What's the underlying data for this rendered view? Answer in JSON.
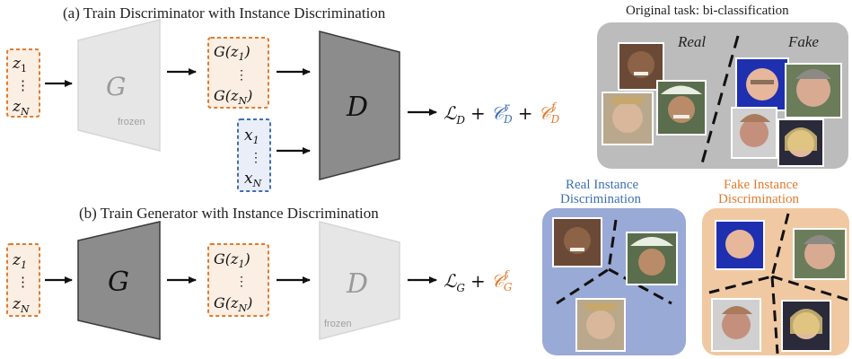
{
  "section_a": {
    "title": "(a) Train Discriminator with Instance Discrimination",
    "inputs": [
      "z",
      "⋮",
      "z"
    ],
    "input_subs": [
      "1",
      "",
      "N"
    ],
    "generator_label": "G",
    "generator_note": "frozen",
    "gen_outputs": [
      "G(z",
      "⋮",
      "G(z"
    ],
    "gen_output_subs": [
      "1",
      "",
      "N"
    ],
    "real_inputs": [
      "x",
      "⋮",
      "x"
    ],
    "real_input_subs": [
      "1",
      "",
      "N"
    ],
    "discriminator_label": "D",
    "loss": {
      "l": "ℒ",
      "l_sub": "D",
      "plus": "+",
      "c1": "𝒞",
      "c1_sup": "r",
      "c1_sub": "D",
      "c2": "𝒞",
      "c2_sup": "f",
      "c2_sub": "D"
    }
  },
  "section_b": {
    "title": "(b) Train Generator with Instance Discrimination",
    "inputs": [
      "z",
      "⋮",
      "z"
    ],
    "input_subs": [
      "1",
      "",
      "N"
    ],
    "generator_label": "G",
    "gen_outputs": [
      "G(z",
      "⋮",
      "G(z"
    ],
    "gen_output_subs": [
      "1",
      "",
      "N"
    ],
    "discriminator_label": "D",
    "discriminator_note": "frozen",
    "loss": {
      "l": "ℒ",
      "l_sub": "G",
      "plus": "+",
      "c": "𝒞",
      "c_sup": "f",
      "c_sub": "G"
    }
  },
  "panels": {
    "original": {
      "title": "Original task: bi-classification",
      "real_label": "Real",
      "fake_label": "Fake"
    },
    "real_instance": {
      "title_line1": "Real Instance",
      "title_line2": "Discrimination"
    },
    "fake_instance": {
      "title_line1": "Fake Instance",
      "title_line2": "Discrimination"
    }
  },
  "colors": {
    "orange": "#e07b2e",
    "blue": "#3d6fb6",
    "grey_panel": "#bcbcbc",
    "blue_panel": "#9aaad6",
    "orange_panel": "#f0c9a2"
  }
}
